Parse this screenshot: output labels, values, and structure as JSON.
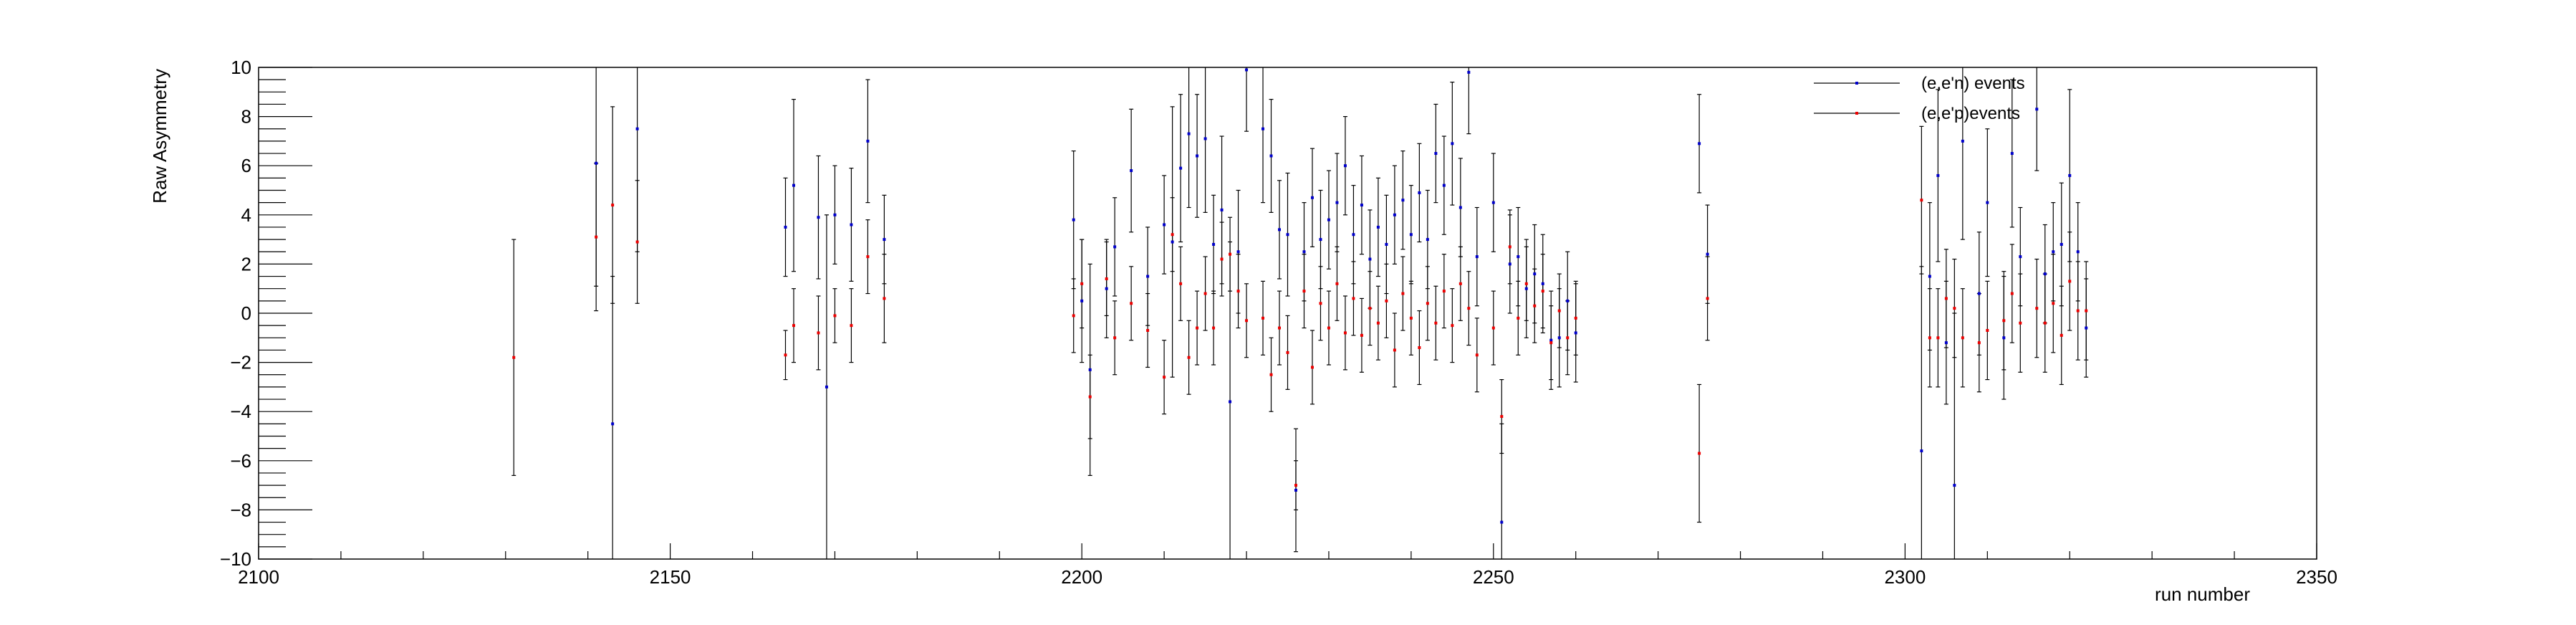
{
  "chart_data": {
    "type": "scatter",
    "title": "",
    "xlabel": "run number",
    "ylabel": "Raw Asymmetry",
    "xlim": [
      2100,
      2350
    ],
    "ylim": [
      -10,
      10
    ],
    "xticks": [
      2100,
      2150,
      2200,
      2250,
      2300,
      2350
    ],
    "yticks": [
      -10,
      -8,
      -6,
      -4,
      -2,
      0,
      2,
      4,
      6,
      8,
      10
    ],
    "x_tick_labels": [
      "2100",
      "2150",
      "2200",
      "2250",
      "2300",
      "2350"
    ],
    "y_tick_labels": [
      "−10",
      "−8",
      "−6",
      "−4",
      "−2",
      "0",
      "2",
      "4",
      "6",
      "8",
      "10"
    ],
    "grid": false,
    "legend_position": "top-right",
    "error_bar_color": "#000000",
    "series": [
      {
        "name": "(e,e'n) events",
        "color": "#0000cc",
        "points": [
          {
            "x": 2141,
            "y": 6.1,
            "err": 5.0
          },
          {
            "x": 2143,
            "y": -4.5,
            "err": 6.0
          },
          {
            "x": 2146,
            "y": 7.5,
            "err": 5.0
          },
          {
            "x": 2164,
            "y": 3.5,
            "err": 2.0
          },
          {
            "x": 2165,
            "y": 5.2,
            "err": 3.5
          },
          {
            "x": 2168,
            "y": 3.9,
            "err": 2.5
          },
          {
            "x": 2169,
            "y": -3.0,
            "err": 7.0
          },
          {
            "x": 2170,
            "y": 4.0,
            "err": 2.0
          },
          {
            "x": 2172,
            "y": 3.6,
            "err": 2.3
          },
          {
            "x": 2174,
            "y": 7.0,
            "err": 2.5
          },
          {
            "x": 2176,
            "y": 3.0,
            "err": 1.8
          },
          {
            "x": 2199,
            "y": 3.8,
            "err": 2.8
          },
          {
            "x": 2200,
            "y": 0.5,
            "err": 2.5
          },
          {
            "x": 2201,
            "y": -2.3,
            "err": 4.3
          },
          {
            "x": 2203,
            "y": 1.0,
            "err": 2.0
          },
          {
            "x": 2204,
            "y": 2.7,
            "err": 2.0
          },
          {
            "x": 2206,
            "y": 5.8,
            "err": 2.5
          },
          {
            "x": 2208,
            "y": 1.5,
            "err": 2.0
          },
          {
            "x": 2210,
            "y": 3.6,
            "err": 2.0
          },
          {
            "x": 2211,
            "y": 2.9,
            "err": 5.5
          },
          {
            "x": 2212,
            "y": 5.9,
            "err": 3.0
          },
          {
            "x": 2213,
            "y": 7.3,
            "err": 3.0
          },
          {
            "x": 2214,
            "y": 6.4,
            "err": 2.5
          },
          {
            "x": 2215,
            "y": 7.1,
            "err": 3.0
          },
          {
            "x": 2216,
            "y": 2.8,
            "err": 2.0
          },
          {
            "x": 2217,
            "y": 4.2,
            "err": 3.0
          },
          {
            "x": 2218,
            "y": -3.6,
            "err": 6.5
          },
          {
            "x": 2219,
            "y": 2.5,
            "err": 2.5
          },
          {
            "x": 2220,
            "y": 9.9,
            "err": 2.5
          },
          {
            "x": 2222,
            "y": 7.5,
            "err": 3.0
          },
          {
            "x": 2223,
            "y": 6.4,
            "err": 2.3
          },
          {
            "x": 2224,
            "y": 3.4,
            "err": 2.0
          },
          {
            "x": 2225,
            "y": 3.2,
            "err": 2.5
          },
          {
            "x": 2226,
            "y": -7.2,
            "err": 2.5
          },
          {
            "x": 2227,
            "y": 2.5,
            "err": 2.0
          },
          {
            "x": 2228,
            "y": 4.7,
            "err": 2.0
          },
          {
            "x": 2229,
            "y": 3.0,
            "err": 2.0
          },
          {
            "x": 2230,
            "y": 3.8,
            "err": 2.0
          },
          {
            "x": 2231,
            "y": 4.5,
            "err": 2.0
          },
          {
            "x": 2232,
            "y": 6.0,
            "err": 2.0
          },
          {
            "x": 2233,
            "y": 3.2,
            "err": 2.0
          },
          {
            "x": 2234,
            "y": 4.4,
            "err": 2.0
          },
          {
            "x": 2235,
            "y": 2.2,
            "err": 2.0
          },
          {
            "x": 2236,
            "y": 3.5,
            "err": 2.0
          },
          {
            "x": 2237,
            "y": 2.8,
            "err": 2.0
          },
          {
            "x": 2238,
            "y": 4.0,
            "err": 2.0
          },
          {
            "x": 2239,
            "y": 4.6,
            "err": 2.0
          },
          {
            "x": 2240,
            "y": 3.2,
            "err": 2.0
          },
          {
            "x": 2241,
            "y": 4.9,
            "err": 2.0
          },
          {
            "x": 2242,
            "y": 3.0,
            "err": 2.0
          },
          {
            "x": 2243,
            "y": 6.5,
            "err": 2.0
          },
          {
            "x": 2244,
            "y": 5.2,
            "err": 2.0
          },
          {
            "x": 2245,
            "y": 6.9,
            "err": 2.5
          },
          {
            "x": 2246,
            "y": 4.3,
            "err": 2.0
          },
          {
            "x": 2247,
            "y": 9.8,
            "err": 2.5
          },
          {
            "x": 2248,
            "y": 2.3,
            "err": 2.0
          },
          {
            "x": 2250,
            "y": 4.5,
            "err": 2.0
          },
          {
            "x": 2251,
            "y": -8.5,
            "err": 4.0
          },
          {
            "x": 2252,
            "y": 2.0,
            "err": 2.0
          },
          {
            "x": 2253,
            "y": 2.3,
            "err": 2.0
          },
          {
            "x": 2254,
            "y": 1.0,
            "err": 2.0
          },
          {
            "x": 2255,
            "y": 1.6,
            "err": 2.0
          },
          {
            "x": 2256,
            "y": 1.2,
            "err": 2.0
          },
          {
            "x": 2257,
            "y": -1.1,
            "err": 2.0
          },
          {
            "x": 2258,
            "y": -1.0,
            "err": 2.0
          },
          {
            "x": 2259,
            "y": 0.5,
            "err": 2.0
          },
          {
            "x": 2260,
            "y": -0.8,
            "err": 2.0
          },
          {
            "x": 2275,
            "y": 6.9,
            "err": 2.0
          },
          {
            "x": 2276,
            "y": 2.4,
            "err": 2.0
          },
          {
            "x": 2302,
            "y": -5.6,
            "err": 7.5
          },
          {
            "x": 2303,
            "y": 1.5,
            "err": 3.0
          },
          {
            "x": 2304,
            "y": 5.6,
            "err": 3.5
          },
          {
            "x": 2305,
            "y": -1.2,
            "err": 2.5
          },
          {
            "x": 2306,
            "y": -7.0,
            "err": 7.0
          },
          {
            "x": 2307,
            "y": 7.0,
            "err": 4.0
          },
          {
            "x": 2309,
            "y": 0.8,
            "err": 2.5
          },
          {
            "x": 2310,
            "y": 4.5,
            "err": 3.0
          },
          {
            "x": 2312,
            "y": -1.0,
            "err": 2.5
          },
          {
            "x": 2313,
            "y": 6.5,
            "err": 3.0
          },
          {
            "x": 2314,
            "y": 2.3,
            "err": 2.0
          },
          {
            "x": 2316,
            "y": 8.3,
            "err": 2.5
          },
          {
            "x": 2317,
            "y": 1.6,
            "err": 2.0
          },
          {
            "x": 2318,
            "y": 2.5,
            "err": 2.0
          },
          {
            "x": 2319,
            "y": 2.8,
            "err": 2.5
          },
          {
            "x": 2320,
            "y": 5.6,
            "err": 3.5
          },
          {
            "x": 2321,
            "y": 2.5,
            "err": 2.0
          },
          {
            "x": 2322,
            "y": -0.6,
            "err": 2.0
          }
        ]
      },
      {
        "name": "(e,e'p)events",
        "color": "#ee0000",
        "points": [
          {
            "x": 2131,
            "y": -1.8,
            "err": 4.8
          },
          {
            "x": 2141,
            "y": 3.1,
            "err": 3.0
          },
          {
            "x": 2143,
            "y": 4.4,
            "err": 4.0
          },
          {
            "x": 2146,
            "y": 2.9,
            "err": 2.5
          },
          {
            "x": 2164,
            "y": -1.7,
            "err": 1.0
          },
          {
            "x": 2165,
            "y": -0.5,
            "err": 1.5
          },
          {
            "x": 2168,
            "y": -0.8,
            "err": 1.5
          },
          {
            "x": 2170,
            "y": -0.1,
            "err": 1.1
          },
          {
            "x": 2172,
            "y": -0.5,
            "err": 1.5
          },
          {
            "x": 2174,
            "y": 2.3,
            "err": 1.5
          },
          {
            "x": 2176,
            "y": 0.6,
            "err": 1.8
          },
          {
            "x": 2199,
            "y": -0.1,
            "err": 1.5
          },
          {
            "x": 2200,
            "y": 1.2,
            "err": 1.8
          },
          {
            "x": 2201,
            "y": -3.4,
            "err": 1.7
          },
          {
            "x": 2203,
            "y": 1.4,
            "err": 1.5
          },
          {
            "x": 2204,
            "y": -1.0,
            "err": 1.5
          },
          {
            "x": 2206,
            "y": 0.4,
            "err": 1.5
          },
          {
            "x": 2208,
            "y": -0.7,
            "err": 1.5
          },
          {
            "x": 2210,
            "y": -2.6,
            "err": 1.5
          },
          {
            "x": 2211,
            "y": 3.2,
            "err": 1.5
          },
          {
            "x": 2212,
            "y": 1.2,
            "err": 1.5
          },
          {
            "x": 2213,
            "y": -1.8,
            "err": 1.5
          },
          {
            "x": 2214,
            "y": -0.6,
            "err": 1.5
          },
          {
            "x": 2215,
            "y": 0.8,
            "err": 1.5
          },
          {
            "x": 2216,
            "y": -0.6,
            "err": 1.5
          },
          {
            "x": 2217,
            "y": 2.2,
            "err": 1.5
          },
          {
            "x": 2218,
            "y": 2.4,
            "err": 1.5
          },
          {
            "x": 2219,
            "y": 0.9,
            "err": 1.5
          },
          {
            "x": 2220,
            "y": -0.3,
            "err": 1.5
          },
          {
            "x": 2222,
            "y": -0.2,
            "err": 1.5
          },
          {
            "x": 2223,
            "y": -2.5,
            "err": 1.5
          },
          {
            "x": 2224,
            "y": -0.6,
            "err": 1.5
          },
          {
            "x": 2225,
            "y": -1.6,
            "err": 1.5
          },
          {
            "x": 2226,
            "y": -7.0,
            "err": 1.0
          },
          {
            "x": 2227,
            "y": 0.9,
            "err": 1.5
          },
          {
            "x": 2228,
            "y": -2.2,
            "err": 1.5
          },
          {
            "x": 2229,
            "y": 0.4,
            "err": 1.5
          },
          {
            "x": 2230,
            "y": -0.6,
            "err": 1.5
          },
          {
            "x": 2231,
            "y": 1.2,
            "err": 1.5
          },
          {
            "x": 2232,
            "y": -0.8,
            "err": 1.5
          },
          {
            "x": 2233,
            "y": 0.6,
            "err": 1.5
          },
          {
            "x": 2234,
            "y": -0.9,
            "err": 1.5
          },
          {
            "x": 2235,
            "y": 0.2,
            "err": 1.5
          },
          {
            "x": 2236,
            "y": -0.4,
            "err": 1.5
          },
          {
            "x": 2237,
            "y": 0.5,
            "err": 1.5
          },
          {
            "x": 2238,
            "y": -1.5,
            "err": 1.5
          },
          {
            "x": 2239,
            "y": 0.8,
            "err": 1.5
          },
          {
            "x": 2240,
            "y": -0.2,
            "err": 1.5
          },
          {
            "x": 2241,
            "y": -1.4,
            "err": 1.5
          },
          {
            "x": 2242,
            "y": 0.4,
            "err": 1.5
          },
          {
            "x": 2243,
            "y": -0.4,
            "err": 1.5
          },
          {
            "x": 2244,
            "y": 0.9,
            "err": 1.5
          },
          {
            "x": 2245,
            "y": -0.5,
            "err": 1.5
          },
          {
            "x": 2246,
            "y": 1.2,
            "err": 1.5
          },
          {
            "x": 2247,
            "y": 0.2,
            "err": 1.5
          },
          {
            "x": 2248,
            "y": -1.7,
            "err": 1.5
          },
          {
            "x": 2250,
            "y": -0.6,
            "err": 1.5
          },
          {
            "x": 2251,
            "y": -4.2,
            "err": 1.5
          },
          {
            "x": 2252,
            "y": 2.7,
            "err": 1.5
          },
          {
            "x": 2253,
            "y": -0.2,
            "err": 1.5
          },
          {
            "x": 2254,
            "y": 1.2,
            "err": 1.5
          },
          {
            "x": 2255,
            "y": 0.3,
            "err": 1.5
          },
          {
            "x": 2256,
            "y": 0.9,
            "err": 1.5
          },
          {
            "x": 2257,
            "y": -1.2,
            "err": 1.5
          },
          {
            "x": 2258,
            "y": 0.1,
            "err": 1.5
          },
          {
            "x": 2259,
            "y": -1.0,
            "err": 1.5
          },
          {
            "x": 2260,
            "y": -0.2,
            "err": 1.5
          },
          {
            "x": 2275,
            "y": -5.7,
            "err": 2.8
          },
          {
            "x": 2276,
            "y": 0.6,
            "err": 1.7
          },
          {
            "x": 2302,
            "y": 4.6,
            "err": 3.0
          },
          {
            "x": 2303,
            "y": -1.0,
            "err": 2.0
          },
          {
            "x": 2304,
            "y": -1.0,
            "err": 2.0
          },
          {
            "x": 2305,
            "y": 0.6,
            "err": 2.0
          },
          {
            "x": 2306,
            "y": 0.2,
            "err": 2.0
          },
          {
            "x": 2307,
            "y": -1.0,
            "err": 2.0
          },
          {
            "x": 2309,
            "y": -1.2,
            "err": 2.0
          },
          {
            "x": 2310,
            "y": -0.7,
            "err": 2.0
          },
          {
            "x": 2312,
            "y": -0.3,
            "err": 2.0
          },
          {
            "x": 2313,
            "y": 0.8,
            "err": 2.0
          },
          {
            "x": 2314,
            "y": -0.4,
            "err": 2.0
          },
          {
            "x": 2316,
            "y": 0.2,
            "err": 2.0
          },
          {
            "x": 2317,
            "y": -0.4,
            "err": 2.0
          },
          {
            "x": 2318,
            "y": 0.4,
            "err": 2.0
          },
          {
            "x": 2319,
            "y": -0.9,
            "err": 2.0
          },
          {
            "x": 2320,
            "y": 1.3,
            "err": 2.0
          },
          {
            "x": 2321,
            "y": 0.1,
            "err": 2.0
          },
          {
            "x": 2322,
            "y": 0.1,
            "err": 2.0
          }
        ]
      }
    ]
  }
}
